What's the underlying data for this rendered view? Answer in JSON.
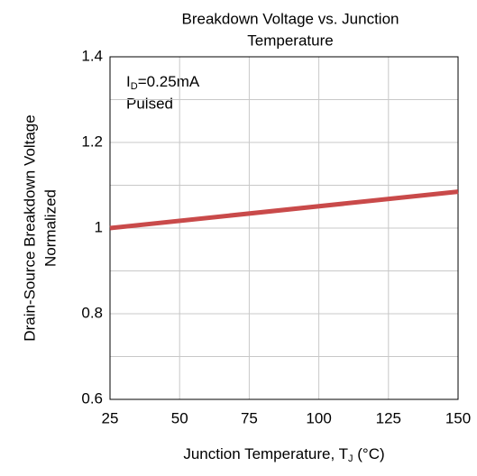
{
  "chart_data": {
    "type": "line",
    "title": [
      "Breakdown Voltage vs. Junction",
      "Temperature"
    ],
    "y_label": [
      "Drain-Source Breakdown Voltage",
      "Normalized"
    ],
    "x_label": {
      "text": "Junction Temperature, T",
      "sub": "J",
      "suffix": " (°C)"
    },
    "annotation": {
      "main": "I",
      "sub": "D",
      "rest": "=0.25mA",
      "line2": "Pulsed"
    },
    "x": [
      25,
      150
    ],
    "series": [
      {
        "name": "Breakdown Voltage",
        "color": "#c94a4a",
        "values": [
          1.0,
          1.085
        ]
      }
    ],
    "xlim": [
      25,
      150
    ],
    "xticks": [
      25,
      50,
      75,
      100,
      125,
      150
    ],
    "ylim": [
      0.6,
      1.4
    ],
    "yticks": [
      0.6,
      0.8,
      1,
      1.2,
      1.4
    ],
    "yminor": [
      0.7,
      0.9,
      1.1,
      1.3
    ],
    "grid": true
  }
}
